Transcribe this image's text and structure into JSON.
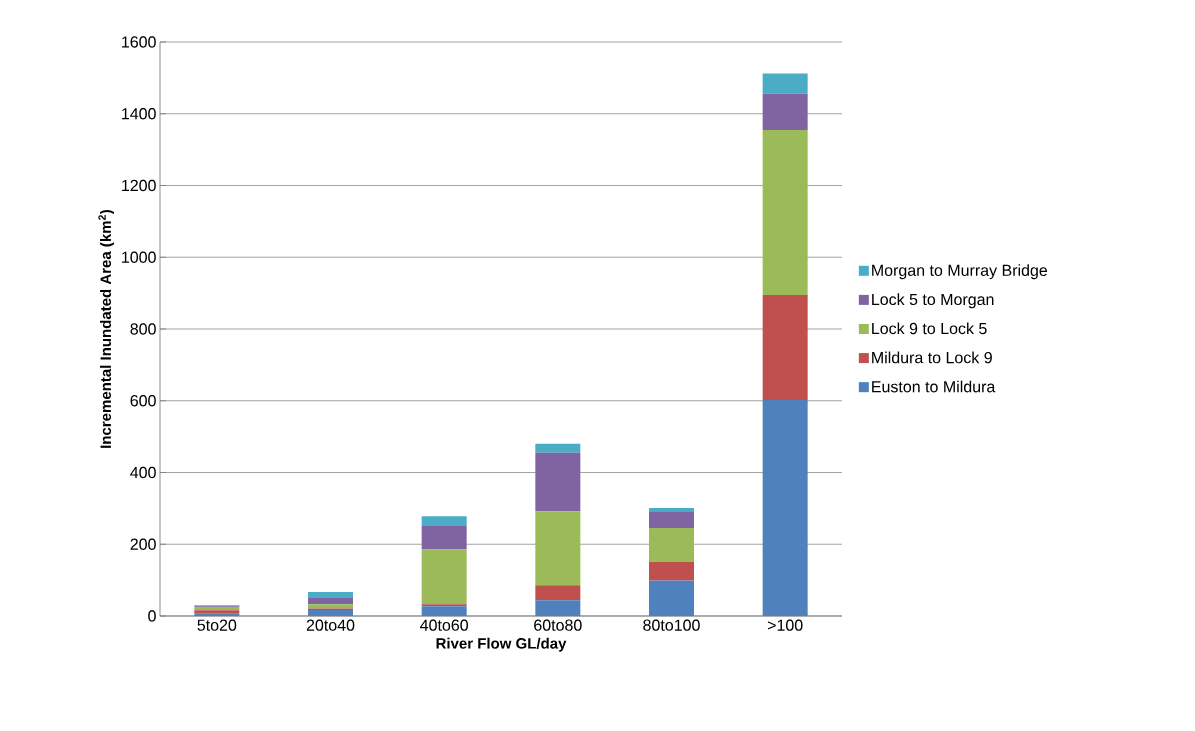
{
  "chart_data": {
    "type": "bar",
    "stacked": true,
    "xlabel": "River Flow GL/day",
    "ylabel": "Incremental Inundated Area (km$^{2}$)",
    "categories": [
      "5to20",
      "20to40",
      "40to60",
      "60to80",
      "80to100",
      ">100"
    ],
    "series": [
      {
        "name": "Euston to Mildura",
        "color": "#4f81bd",
        "values": [
          6,
          17,
          27,
          44,
          99,
          602
        ]
      },
      {
        "name": "Mildura to Lock 9",
        "color": "#c0504d",
        "values": [
          10,
          4,
          6,
          42,
          52,
          293
        ]
      },
      {
        "name": "Lock 9 to Lock 5",
        "color": "#9bbb59",
        "values": [
          9,
          12,
          152,
          206,
          94,
          460
        ]
      },
      {
        "name": "Lock 5 to Morgan",
        "color": "#8064a2",
        "values": [
          2,
          17,
          68,
          163,
          47,
          101
        ]
      },
      {
        "name": "Morgan to Murray Bridge",
        "color": "#4bacc6",
        "values": [
          3,
          17,
          25,
          25,
          9,
          56
        ]
      }
    ],
    "ylim": [
      0,
      1600
    ],
    "yticks": [
      0,
      200,
      400,
      600,
      800,
      1000,
      1200,
      1400,
      1600
    ],
    "grid": "y",
    "legend": "right"
  }
}
